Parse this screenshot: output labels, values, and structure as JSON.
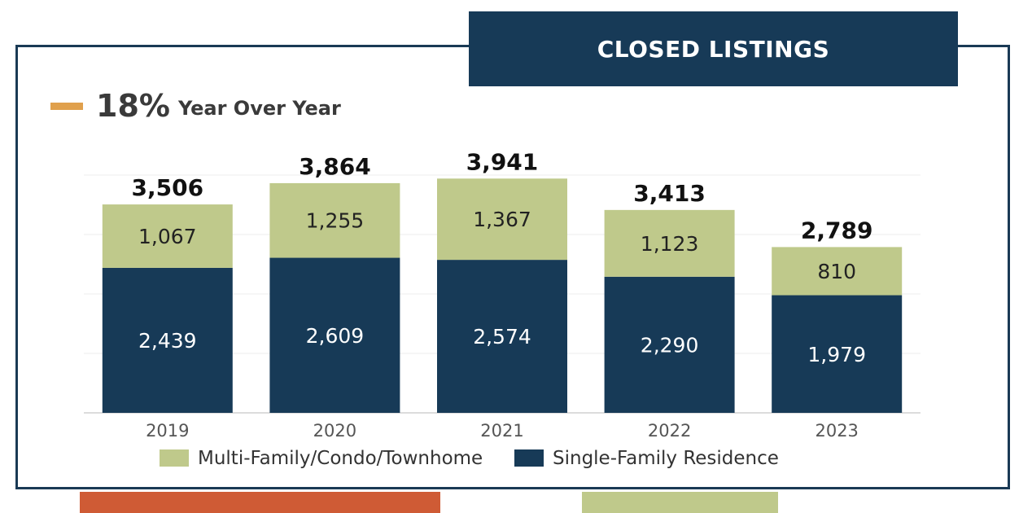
{
  "header": {
    "title": "CLOSED LISTINGS"
  },
  "yoy": {
    "value": "18%",
    "label": "Year Over Year"
  },
  "colors": {
    "single_family": "#173a57",
    "multi_family": "#bfc98b",
    "accent_dash": "#e0a04c",
    "accent_orange": "#cf5b35"
  },
  "chart_data": {
    "type": "bar",
    "stacked": true,
    "categories": [
      "2019",
      "2020",
      "2021",
      "2022",
      "2023"
    ],
    "series": [
      {
        "name": "Single-Family Residence",
        "values": [
          2439,
          2609,
          2574,
          2290,
          1979
        ],
        "labels": [
          "2,439",
          "2,609",
          "2,574",
          "2,290",
          "1,979"
        ]
      },
      {
        "name": "Multi-Family/Condo/Townhome",
        "values": [
          1067,
          1255,
          1367,
          1123,
          810
        ],
        "labels": [
          "1,067",
          "1,255",
          "1,367",
          "1,123",
          "810"
        ]
      }
    ],
    "totals": [
      "3,506",
      "3,864",
      "3,941",
      "3,413",
      "2,789"
    ],
    "legend": [
      "Multi-Family/Condo/Townhome",
      "Single-Family Residence"
    ],
    "ylim": [
      0,
      4000
    ],
    "grid": true,
    "legend_position": "bottom"
  }
}
